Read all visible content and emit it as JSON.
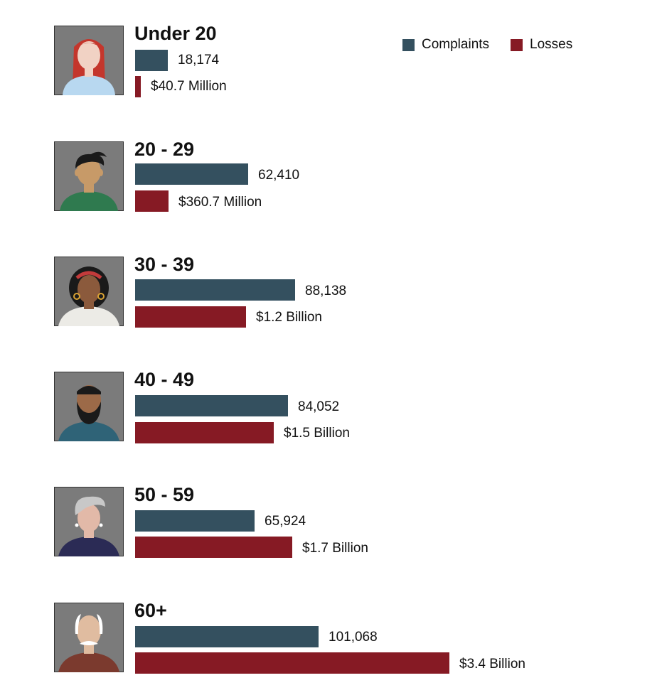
{
  "colors": {
    "complaints": "#34505f",
    "losses": "#861a24"
  },
  "legend": {
    "complaints_label": "Complaints",
    "losses_label": "Losses"
  },
  "chart_data": {
    "type": "bar",
    "orientation": "horizontal",
    "categories": [
      "Under 20",
      "20 - 29",
      "30 - 39",
      "40 - 49",
      "50 - 59",
      "60+"
    ],
    "series": [
      {
        "name": "Complaints",
        "values": [
          18174,
          62410,
          88138,
          84052,
          65924,
          101068
        ],
        "labels": [
          "18,174",
          "62,410",
          "88,138",
          "84,052",
          "65,924",
          "101,068"
        ]
      },
      {
        "name": "Losses",
        "values_billion": [
          0.0407,
          0.3607,
          1.2,
          1.5,
          1.7,
          3.4
        ],
        "labels": [
          "$40.7 Million",
          "$360.7 Million",
          "$1.2 Billion",
          "$1.5 Billion",
          "$1.7 Billion",
          "$3.4 Billion"
        ]
      }
    ],
    "legend_position": "top-right",
    "grid": false
  },
  "groups": [
    {
      "title": "Under 20",
      "avatar": "young-woman-avatar-icon",
      "complaints": 18174,
      "losses": 0.0407
    },
    {
      "title": "20 - 29",
      "avatar": "young-man-avatar-icon",
      "complaints": 62410,
      "losses": 0.3607
    },
    {
      "title": "30 - 39",
      "avatar": "woman-avatar-icon",
      "complaints": 88138,
      "losses": 1.2
    },
    {
      "title": "40 - 49",
      "avatar": "bearded-man-avatar-icon",
      "complaints": 84052,
      "losses": 1.5
    },
    {
      "title": "50 - 59",
      "avatar": "gray-haired-woman-avatar-icon",
      "complaints": 65924,
      "losses": 1.7
    },
    {
      "title": "60+",
      "avatar": "elderly-man-avatar-icon",
      "complaints": 101068,
      "losses": 3.4
    }
  ]
}
